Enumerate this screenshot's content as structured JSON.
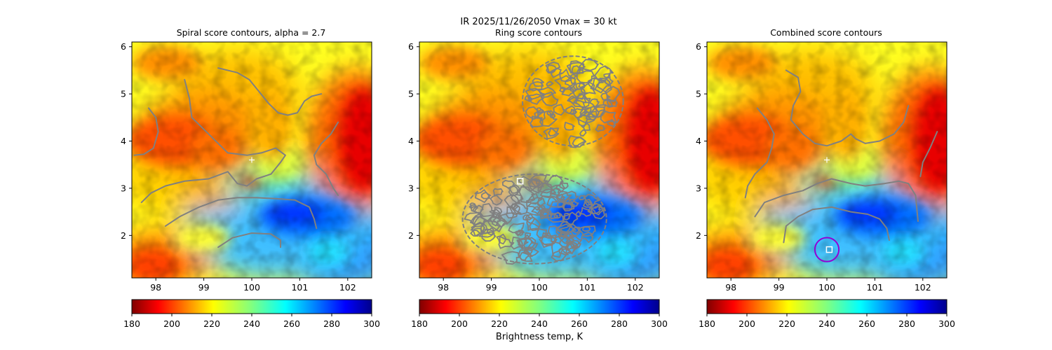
{
  "figure": {
    "suptitle_line1": "IR  2025/11/26/2050    Vmax = 30 kt",
    "colorbar_label": "Brightness temp, K"
  },
  "colors": {
    "contour": "#808080",
    "marker_white": "#ffffff",
    "circle": "#9400d3",
    "colormap": "jet_r"
  },
  "chart_data": [
    {
      "type": "heatmap",
      "title": "Spiral score contours, alpha =  2.7",
      "xlim": [
        97.5,
        102.5
      ],
      "ylim": [
        1.1,
        6.1
      ],
      "xticks": [
        98,
        99,
        100,
        101,
        102
      ],
      "yticks": [
        2,
        3,
        4,
        5,
        6
      ],
      "xtick_labels": [
        "98",
        "99",
        "100",
        "101",
        "102"
      ],
      "ytick_labels": [
        "2",
        "3",
        "4",
        "5",
        "6"
      ],
      "colorbar": {
        "min": 180,
        "max": 300,
        "ticks": [
          180,
          200,
          220,
          240,
          260,
          280,
          300
        ],
        "tick_labels": [
          "180",
          "200",
          "220",
          "240",
          "260",
          "280",
          "300"
        ]
      },
      "center_marker": {
        "symbol": "plus",
        "x": 100.0,
        "y": 3.6
      },
      "contours": [
        [
          [
            97.55,
            3.7
          ],
          [
            97.75,
            3.72
          ],
          [
            97.95,
            3.85
          ],
          [
            98.05,
            4.2
          ],
          [
            98.0,
            4.5
          ],
          [
            97.85,
            4.7
          ]
        ],
        [
          [
            97.7,
            2.7
          ],
          [
            97.9,
            2.9
          ],
          [
            98.2,
            3.05
          ],
          [
            98.6,
            3.15
          ],
          [
            99.1,
            3.2
          ],
          [
            99.5,
            3.35
          ],
          [
            99.7,
            3.1
          ],
          [
            99.9,
            3.05
          ],
          [
            100.1,
            3.2
          ],
          [
            100.4,
            3.3
          ],
          [
            100.6,
            3.55
          ],
          [
            100.7,
            3.7
          ],
          [
            100.5,
            3.85
          ],
          [
            100.2,
            3.75
          ],
          [
            99.9,
            3.7
          ],
          [
            99.5,
            3.75
          ],
          [
            99.3,
            3.95
          ],
          [
            99.0,
            4.25
          ],
          [
            98.75,
            4.5
          ],
          [
            98.7,
            4.9
          ],
          [
            98.6,
            5.3
          ]
        ],
        [
          [
            99.3,
            5.55
          ],
          [
            99.7,
            5.45
          ],
          [
            99.95,
            5.3
          ],
          [
            100.15,
            5.05
          ],
          [
            100.35,
            4.8
          ],
          [
            100.55,
            4.6
          ],
          [
            100.75,
            4.55
          ],
          [
            100.95,
            4.6
          ],
          [
            101.1,
            4.85
          ],
          [
            101.25,
            4.95
          ],
          [
            101.45,
            5.0
          ]
        ],
        [
          [
            101.8,
            4.4
          ],
          [
            101.65,
            4.15
          ],
          [
            101.45,
            3.95
          ],
          [
            101.3,
            3.7
          ],
          [
            101.35,
            3.5
          ],
          [
            101.55,
            3.3
          ],
          [
            101.7,
            3.0
          ],
          [
            101.8,
            2.85
          ]
        ],
        [
          [
            98.2,
            2.2
          ],
          [
            98.5,
            2.4
          ],
          [
            98.9,
            2.6
          ],
          [
            99.3,
            2.75
          ],
          [
            99.7,
            2.8
          ],
          [
            100.1,
            2.8
          ],
          [
            100.5,
            2.78
          ],
          [
            100.9,
            2.75
          ],
          [
            101.2,
            2.6
          ],
          [
            101.3,
            2.35
          ],
          [
            101.35,
            2.15
          ]
        ],
        [
          [
            99.3,
            1.75
          ],
          [
            99.6,
            1.95
          ],
          [
            100.0,
            2.05
          ],
          [
            100.4,
            2.03
          ],
          [
            100.6,
            1.9
          ],
          [
            100.6,
            1.75
          ]
        ]
      ]
    },
    {
      "type": "heatmap",
      "title": "Ring score contours",
      "xlim": [
        97.5,
        102.5
      ],
      "ylim": [
        1.1,
        6.1
      ],
      "xticks": [
        98,
        99,
        100,
        101,
        102
      ],
      "yticks": [
        2,
        3,
        4,
        5,
        6
      ],
      "xtick_labels": [
        "98",
        "99",
        "100",
        "101",
        "102"
      ],
      "ytick_labels": [
        "2",
        "3",
        "4",
        "5",
        "6"
      ],
      "colorbar": {
        "min": 180,
        "max": 300,
        "ticks": [
          180,
          200,
          220,
          240,
          260,
          280,
          300
        ],
        "tick_labels": [
          "180",
          "200",
          "220",
          "240",
          "260",
          "280",
          "300"
        ]
      },
      "center_marker": {
        "symbol": "square",
        "x": 99.6,
        "y": 3.15
      },
      "ring_regions": [
        {
          "cx": 100.7,
          "cy": 4.85,
          "rx": 1.05,
          "ry": 0.95
        },
        {
          "cx": 99.9,
          "cy": 2.35,
          "rx": 1.5,
          "ry": 0.95
        }
      ]
    },
    {
      "type": "heatmap",
      "title": "Combined score contours",
      "xlim": [
        97.5,
        102.5
      ],
      "ylim": [
        1.1,
        6.1
      ],
      "xticks": [
        98,
        99,
        100,
        101,
        102
      ],
      "yticks": [
        2,
        3,
        4,
        5,
        6
      ],
      "xtick_labels": [
        "98",
        "99",
        "100",
        "101",
        "102"
      ],
      "ytick_labels": [
        "2",
        "3",
        "4",
        "5",
        "6"
      ],
      "colorbar": {
        "min": 180,
        "max": 300,
        "ticks": [
          180,
          200,
          220,
          240,
          260,
          280,
          300
        ],
        "tick_labels": [
          "180",
          "200",
          "220",
          "240",
          "260",
          "280",
          "300"
        ]
      },
      "center_marker": {
        "symbol": "plus",
        "x": 100.0,
        "y": 3.6
      },
      "best_marker": {
        "symbol": "square",
        "x": 100.05,
        "y": 1.7
      },
      "circle": {
        "cx": 100.0,
        "cy": 1.7,
        "r": 0.25
      },
      "contours": [
        [
          [
            98.3,
            2.8
          ],
          [
            98.35,
            3.05
          ],
          [
            98.5,
            3.3
          ],
          [
            98.75,
            3.55
          ],
          [
            98.85,
            3.85
          ],
          [
            98.9,
            4.15
          ],
          [
            98.75,
            4.45
          ],
          [
            98.55,
            4.7
          ]
        ],
        [
          [
            98.5,
            2.4
          ],
          [
            98.7,
            2.7
          ],
          [
            99.1,
            2.85
          ],
          [
            99.5,
            2.95
          ],
          [
            99.8,
            3.1
          ],
          [
            100.1,
            3.2
          ],
          [
            100.5,
            3.1
          ],
          [
            100.8,
            3.05
          ],
          [
            101.2,
            3.1
          ],
          [
            101.5,
            3.15
          ],
          [
            101.7,
            3.1
          ],
          [
            101.85,
            2.85
          ],
          [
            101.9,
            2.3
          ]
        ],
        [
          [
            99.15,
            5.5
          ],
          [
            99.4,
            5.35
          ],
          [
            99.45,
            5.05
          ],
          [
            99.3,
            4.75
          ],
          [
            99.25,
            4.45
          ],
          [
            99.5,
            4.15
          ],
          [
            99.75,
            3.95
          ],
          [
            100.0,
            3.9
          ],
          [
            100.3,
            4.0
          ],
          [
            100.5,
            4.15
          ],
          [
            100.6,
            4.05
          ],
          [
            100.8,
            3.95
          ],
          [
            101.1,
            4.0
          ],
          [
            101.4,
            4.15
          ],
          [
            101.6,
            4.4
          ],
          [
            101.7,
            4.75
          ]
        ],
        [
          [
            102.3,
            4.2
          ],
          [
            102.15,
            3.85
          ],
          [
            102.0,
            3.55
          ],
          [
            101.95,
            3.25
          ]
        ],
        [
          [
            99.1,
            1.85
          ],
          [
            99.15,
            2.2
          ],
          [
            99.4,
            2.4
          ],
          [
            99.7,
            2.55
          ],
          [
            100.1,
            2.6
          ],
          [
            100.5,
            2.5
          ],
          [
            100.85,
            2.45
          ],
          [
            101.1,
            2.35
          ],
          [
            101.25,
            2.15
          ],
          [
            101.3,
            1.9
          ]
        ]
      ]
    }
  ]
}
